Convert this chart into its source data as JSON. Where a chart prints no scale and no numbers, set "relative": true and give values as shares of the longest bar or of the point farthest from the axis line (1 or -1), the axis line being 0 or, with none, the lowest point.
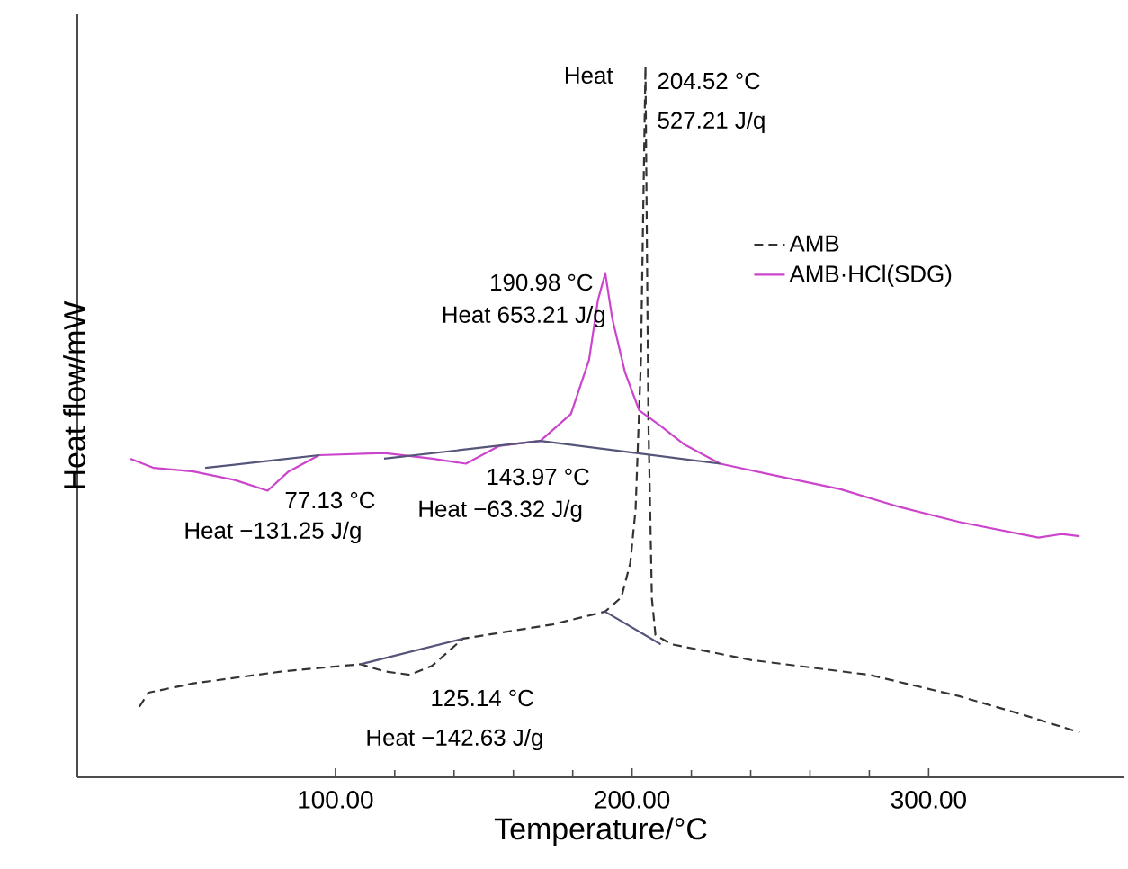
{
  "chart_data": {
    "type": "line",
    "relative": true,
    "xlabel": "Temperature/°C",
    "ylabel": "Heat flow/mW",
    "xlim": [
      13,
      366
    ],
    "xticks": [
      {
        "value": 100,
        "label": "100.00"
      },
      {
        "value": 200,
        "label": "200.00"
      },
      {
        "value": 300,
        "label": "300.00"
      }
    ],
    "marker": "none",
    "grid": false,
    "legend": "top right",
    "series": [
      {
        "name": "AMB",
        "color": "#333333",
        "line_style": "dashed",
        "x": [
          33.9,
          37.0,
          52.1,
          82.4,
          108.5,
          116.4,
          125.14,
          132.7,
          143.0,
          173.3,
          190.9,
          196.4,
          199.4,
          201.2,
          203.0,
          204.52,
          205.5,
          206.7,
          207.9,
          213.3,
          240.0,
          280.0,
          310.3,
          330.9,
          350.9
        ],
        "values": [
          0.099,
          0.119,
          0.132,
          0.149,
          0.159,
          0.149,
          0.144,
          0.157,
          0.195,
          0.215,
          0.233,
          0.253,
          0.301,
          0.377,
          0.587,
          1,
          0.504,
          0.251,
          0.2,
          0.187,
          0.165,
          0.144,
          0.114,
          0.089,
          0.063
        ]
      },
      {
        "name": "AMB·HCl(SDG)",
        "color": "#cc44cc",
        "line_style": "solid",
        "x": [
          30.9,
          38.8,
          52.1,
          66.1,
          77.13,
          84.2,
          94.5,
          116.4,
          132.7,
          143.97,
          155.2,
          169.1,
          179.4,
          185.5,
          188.5,
          190.98,
          193.3,
          197.6,
          202.4,
          209.7,
          217.6,
          229.7,
          249.7,
          270.3,
          290.3,
          310.3,
          337.0,
          344.8,
          350.9
        ],
        "values": [
          0.448,
          0.435,
          0.43,
          0.418,
          0.403,
          0.43,
          0.453,
          0.456,
          0.448,
          0.441,
          0.466,
          0.473,
          0.511,
          0.587,
          0.671,
          0.709,
          0.646,
          0.57,
          0.516,
          0.494,
          0.468,
          0.441,
          0.423,
          0.405,
          0.38,
          0.359,
          0.337,
          0.342,
          0.339
        ]
      },
      {
        "color": "#55557a",
        "line_style": "solid",
        "x": [
          56.1,
          94.5
        ],
        "values": [
          0.435,
          0.453
        ]
      },
      {
        "color": "#55557a",
        "line_style": "solid",
        "x": [
          116.4,
          169.1,
          229.7
        ],
        "values": [
          0.448,
          0.473,
          0.441
        ]
      },
      {
        "color": "#55557a",
        "line_style": "solid",
        "x": [
          108.5,
          143.0
        ],
        "values": [
          0.159,
          0.195
        ]
      },
      {
        "color": "#55557a",
        "line_style": "solid",
        "x": [
          190.9,
          209.7
        ],
        "values": [
          0.233,
          0.187
        ]
      }
    ],
    "annotations": [
      "Heat",
      "204.52 °C",
      "527.21 J/q",
      "190.98 °C",
      "Heat 653.21 J/g",
      "77.13 °C",
      "Heat −131.25 J/g",
      "143.97 °C",
      "Heat −63.32 J/g",
      "125.14 °C",
      "Heat −142.63 J/g"
    ]
  }
}
